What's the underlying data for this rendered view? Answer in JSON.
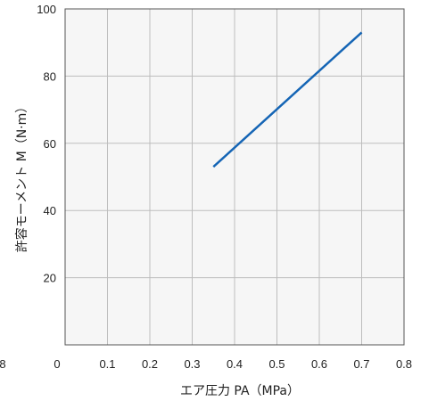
{
  "chart_data": {
    "type": "line",
    "xlabel": "エア圧力 PA（MPa）",
    "ylabel": "許容モーメント M（N·m）",
    "xlim": [
      0,
      0.8
    ],
    "ylim": [
      0,
      100
    ],
    "x_ticks": [
      "0",
      "0.1",
      "0.2",
      "0.3",
      "0.4",
      "0.5",
      "0.6",
      "0.7",
      "0.8"
    ],
    "y_ticks": [
      "20",
      "40",
      "60",
      "80",
      "100"
    ],
    "stray_label": "8",
    "grid": true,
    "plot_background": "#f6f6f6",
    "grid_color": "#bdbdbd",
    "series": [
      {
        "color": "#1565b5",
        "x": [
          0.35,
          0.7
        ],
        "y": [
          53,
          93
        ]
      }
    ]
  }
}
